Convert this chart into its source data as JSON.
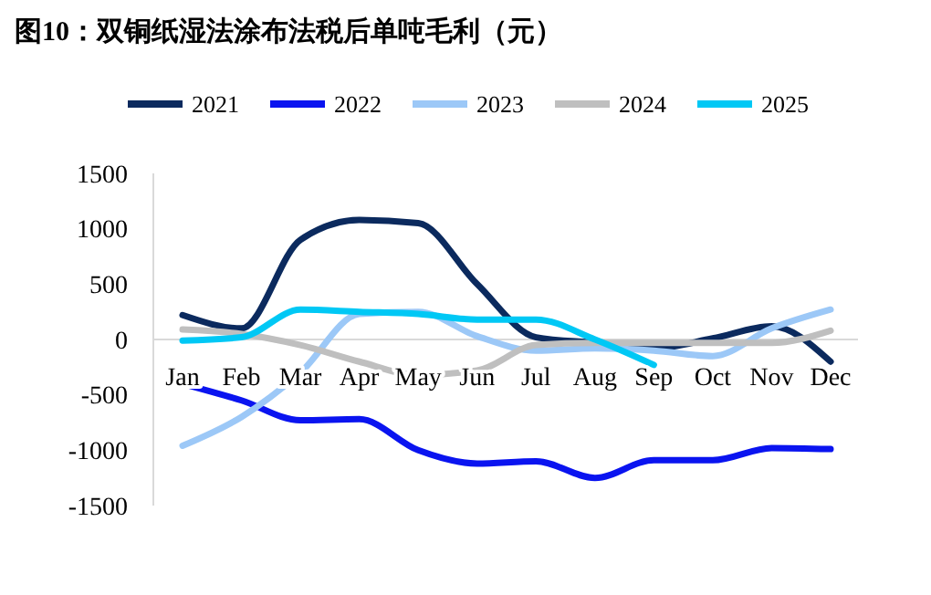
{
  "chart_data": {
    "type": "line",
    "title": "图10：双铜纸湿法涂布法税后单吨毛利（元）",
    "categories": [
      "Jan",
      "Feb",
      "Mar",
      "Apr",
      "May",
      "Jun",
      "Jul",
      "Aug",
      "Sep",
      "Oct",
      "Nov",
      "Dec"
    ],
    "series": [
      {
        "name": "2021",
        "color": "#0b2a5e",
        "values": [
          220,
          100,
          900,
          1080,
          1050,
          500,
          20,
          -30,
          -80,
          10,
          120,
          -200
        ]
      },
      {
        "name": "2022",
        "color": "#0a14f0",
        "values": [
          -400,
          -550,
          -730,
          -720,
          -1000,
          -1120,
          -1100,
          -1250,
          -1090,
          -1090,
          -980,
          -990
        ]
      },
      {
        "name": "2023",
        "color": "#9cc8f7",
        "values": [
          -960,
          -700,
          -300,
          230,
          250,
          30,
          -100,
          -80,
          -100,
          -150,
          100,
          270
        ]
      },
      {
        "name": "2024",
        "color": "#bfbfbf",
        "values": [
          90,
          50,
          -50,
          -200,
          -320,
          -280,
          -50,
          -30,
          -30,
          -30,
          -30,
          80
        ]
      },
      {
        "name": "2025",
        "color": "#00c8f5",
        "values": [
          -10,
          20,
          270,
          250,
          230,
          180,
          180,
          0,
          -230,
          null,
          null,
          null
        ]
      }
    ],
    "ylim": [
      -1500,
      1500
    ],
    "yticks": [
      -1500,
      -1000,
      -500,
      0,
      500,
      1000,
      1500
    ],
    "legend": "top",
    "grid": false,
    "marker": "none",
    "line_style": "solid"
  }
}
